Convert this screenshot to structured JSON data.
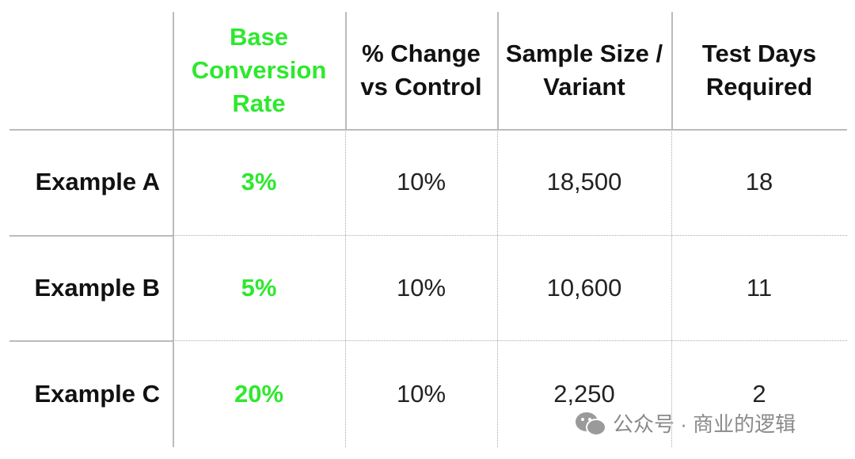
{
  "table": {
    "header": [
      "",
      "Base Conversion Rate",
      "% Change vs Control",
      "Sample Size / Variant",
      "Test Days Required"
    ],
    "rows": [
      [
        "Example A",
        "3%",
        "10%",
        "18,500",
        "18"
      ],
      [
        "Example B",
        "5%",
        "10%",
        "10,600",
        "11"
      ],
      [
        "Example C",
        "20%",
        "10%",
        "2,250",
        "2"
      ]
    ]
  },
  "watermark": "公众号 · 商业的逻辑"
}
